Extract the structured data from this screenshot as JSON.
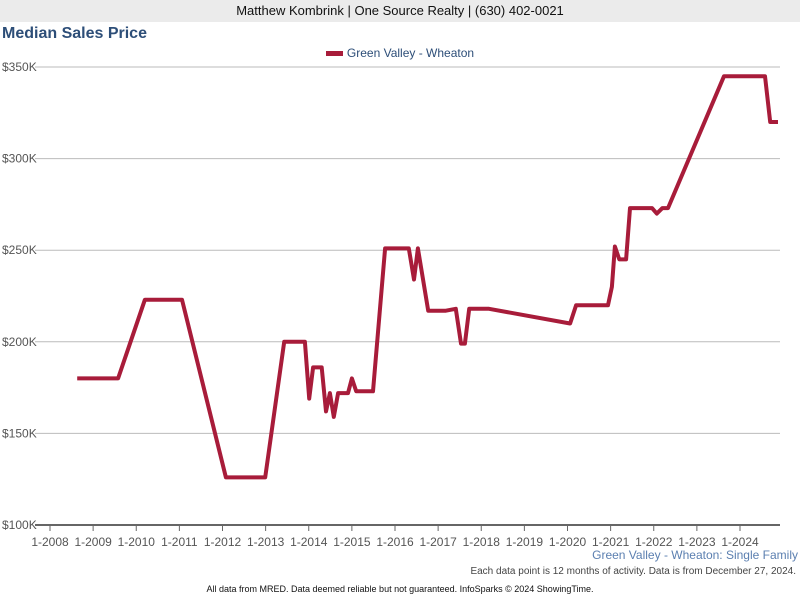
{
  "header": {
    "agent_line": "Matthew Kombrink | One Source Realty | (630) 402-0021"
  },
  "chart_data": {
    "type": "line",
    "title": "Median Sales Price",
    "xlabel": "",
    "ylabel": "",
    "xlim": [
      2008,
      2025.0
    ],
    "ylim": [
      100,
      350
    ],
    "y_ticks": [
      {
        "v": 100,
        "label": "$100K"
      },
      {
        "v": 150,
        "label": "$150K"
      },
      {
        "v": 200,
        "label": "$200K"
      },
      {
        "v": 250,
        "label": "$250K"
      },
      {
        "v": 300,
        "label": "$300K"
      },
      {
        "v": 350,
        "label": "$350K"
      }
    ],
    "x_ticks": [
      {
        "v": 2008,
        "label": "1-2008"
      },
      {
        "v": 2009,
        "label": "1-2009"
      },
      {
        "v": 2010,
        "label": "1-2010"
      },
      {
        "v": 2011,
        "label": "1-2011"
      },
      {
        "v": 2012,
        "label": "1-2012"
      },
      {
        "v": 2013,
        "label": "1-2013"
      },
      {
        "v": 2014,
        "label": "1-2014"
      },
      {
        "v": 2015,
        "label": "1-2015"
      },
      {
        "v": 2016,
        "label": "1-2016"
      },
      {
        "v": 2017,
        "label": "1-2017"
      },
      {
        "v": 2018,
        "label": "1-2018"
      },
      {
        "v": 2019,
        "label": "1-2019"
      },
      {
        "v": 2020,
        "label": "1-2020"
      },
      {
        "v": 2021,
        "label": "1-2021"
      },
      {
        "v": 2022,
        "label": "1-2022"
      },
      {
        "v": 2023,
        "label": "1-2023"
      },
      {
        "v": 2024,
        "label": "1-2024"
      }
    ],
    "grid": true,
    "legend_position": "top-center",
    "series": [
      {
        "name": "Green Valley - Wheaton",
        "color": "#a81c3a",
        "unit": "thousand USD",
        "points": [
          [
            2008.63,
            180
          ],
          [
            2009.58,
            180
          ],
          [
            2010.2,
            223
          ],
          [
            2011.06,
            223
          ],
          [
            2012.08,
            126
          ],
          [
            2012.99,
            126
          ],
          [
            2013.43,
            200
          ],
          [
            2013.91,
            200
          ],
          [
            2014.01,
            169
          ],
          [
            2014.1,
            186
          ],
          [
            2014.3,
            186
          ],
          [
            2014.4,
            162
          ],
          [
            2014.49,
            172
          ],
          [
            2014.58,
            159
          ],
          [
            2014.68,
            172
          ],
          [
            2014.91,
            172
          ],
          [
            2015.0,
            180
          ],
          [
            2015.1,
            173
          ],
          [
            2015.49,
            173
          ],
          [
            2015.77,
            251
          ],
          [
            2016.32,
            251
          ],
          [
            2016.44,
            234
          ],
          [
            2016.53,
            251
          ],
          [
            2016.77,
            217
          ],
          [
            2017.18,
            217
          ],
          [
            2017.41,
            218
          ],
          [
            2017.53,
            199
          ],
          [
            2017.62,
            199
          ],
          [
            2017.72,
            218
          ],
          [
            2018.18,
            218
          ],
          [
            2020.06,
            210
          ],
          [
            2020.2,
            220
          ],
          [
            2020.94,
            220
          ],
          [
            2021.03,
            230
          ],
          [
            2021.1,
            252
          ],
          [
            2021.2,
            245
          ],
          [
            2021.36,
            245
          ],
          [
            2021.45,
            273
          ],
          [
            2021.96,
            273
          ],
          [
            2022.07,
            270
          ],
          [
            2022.2,
            273
          ],
          [
            2022.33,
            273
          ],
          [
            2023.63,
            345
          ],
          [
            2024.58,
            345
          ],
          [
            2024.7,
            320
          ],
          [
            2024.88,
            320
          ]
        ]
      }
    ],
    "subtitle": "Green Valley - Wheaton: Single Family",
    "note": "Each data point is 12 months of activity. Data is from December 27, 2024."
  },
  "footer": "All data from MRED. Data deemed reliable but not guaranteed. InfoSparks © 2024 ShowingTime."
}
